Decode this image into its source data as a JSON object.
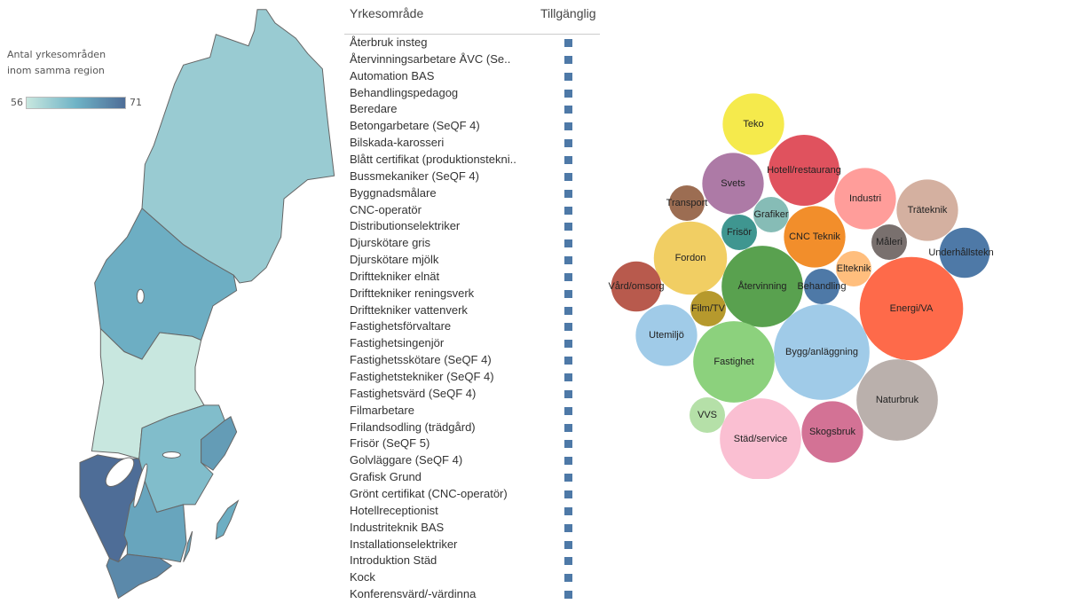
{
  "map": {
    "legend_title_line1": "Antal yrkesområden",
    "legend_title_line2": "inom samma region",
    "legend_min": "56",
    "legend_max": "71",
    "color_low": "#c8e7df",
    "color_mid": "#6fb3c6",
    "color_high": "#4e6d97"
  },
  "table": {
    "col1": "Yrkesområde",
    "col2": "Tillgänglig",
    "mark_color": "#4e79a7",
    "rows": [
      "Återbruk insteg",
      "Återvinningsarbetare ÅVC (Se..",
      "Automation BAS",
      "Behandlingspedagog",
      "Beredare",
      "Betongarbetare (SeQF 4)",
      "Bilskada-karosseri",
      "Blått certifikat (produktionstekni..",
      "Bussmekaniker (SeQF 4)",
      "Byggnadsmålare",
      "CNC-operatör",
      "Distributionselektriker",
      "Djurskötare gris",
      "Djurskötare mjölk",
      "Drifttekniker elnät",
      "Drifttekniker reningsverk",
      "Drifttekniker vattenverk",
      "Fastighetsförvaltare",
      "Fastighetsingenjör",
      "Fastighetsskötare (SeQF 4)",
      "Fastighetstekniker (SeQF 4)",
      "Fastighetsvärd (SeQF 4)",
      "Filmarbetare",
      "Frilandsodling (trädgård)",
      "Frisör (SeQF 5)",
      "Golvläggare (SeQF 4)",
      "Grafisk Grund",
      "Grönt certifikat (CNC-operatör)",
      "Hotellreceptionist",
      "Industriteknik BAS",
      "Installationselektriker",
      "Introduktion Städ",
      "Kock",
      "Konferensvärd/-värdinna"
    ]
  },
  "chart_data": [
    {
      "type": "choropleth-map",
      "legend": {
        "title": "Antal yrkesområden inom samma region",
        "range": [
          56,
          71
        ]
      },
      "values": [
        60,
        64,
        56,
        62,
        66,
        71,
        65,
        68,
        64
      ]
    },
    {
      "type": "packed-bubble",
      "size_scale": "relative",
      "bubbles": [
        {
          "label": "Teko",
          "size": 12,
          "color": "#f5ea4c"
        },
        {
          "label": "Hotell/restaurang",
          "size": 16,
          "color": "#e0525e"
        },
        {
          "label": "Svets",
          "size": 12,
          "color": "#ad7aa6"
        },
        {
          "label": "Transport",
          "size": 4,
          "color": "#9c6d52"
        },
        {
          "label": "Grafiker",
          "size": 4,
          "color": "#86bcb6"
        },
        {
          "label": "Frisör",
          "size": 4,
          "color": "#3f9690"
        },
        {
          "label": "CNC Teknik",
          "size": 12,
          "color": "#f28e2b"
        },
        {
          "label": "Industri",
          "size": 12,
          "color": "#ff9d9a"
        },
        {
          "label": "Träteknik",
          "size": 12,
          "color": "#d4b0a0"
        },
        {
          "label": "Måleri",
          "size": 4,
          "color": "#79706e"
        },
        {
          "label": "Underhållsteknik",
          "size": 8,
          "color": "#4e79a7"
        },
        {
          "label": "Fordon",
          "size": 17,
          "color": "#f1ce63"
        },
        {
          "label": "Vård/omsorg",
          "size": 8,
          "color": "#b85a4d"
        },
        {
          "label": "Återvinning",
          "size": 21,
          "color": "#59a14f"
        },
        {
          "label": "Elteknik",
          "size": 4,
          "color": "#ffbe7d"
        },
        {
          "label": "Behandling",
          "size": 4,
          "color": "#4e79a7"
        },
        {
          "label": "Energi/VA",
          "size": 34,
          "color": "#fe6a4a"
        },
        {
          "label": "Film/TV",
          "size": 4,
          "color": "#b6992d"
        },
        {
          "label": "Utemiljö",
          "size": 12,
          "color": "#a0cbe8"
        },
        {
          "label": "Fastighet",
          "size": 21,
          "color": "#8cd17d"
        },
        {
          "label": "Bygg/anläggning",
          "size": 29,
          "color": "#a0cbe8"
        },
        {
          "label": "Naturbruk",
          "size": 21,
          "color": "#bab0ac"
        },
        {
          "label": "VVS",
          "size": 4,
          "color": "#b5e0a8"
        },
        {
          "label": "Städ/service",
          "size": 21,
          "color": "#fabfd2"
        },
        {
          "label": "Skogsbruk",
          "size": 12,
          "color": "#d37295"
        }
      ]
    }
  ]
}
